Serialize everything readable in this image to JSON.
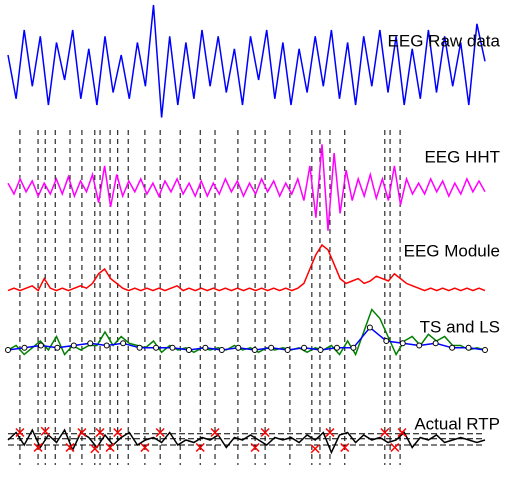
{
  "chart_data": [
    {
      "type": "line",
      "title": "EEG Raw data",
      "ylim": [
        -1,
        1
      ],
      "series": [
        {
          "color": "#0000ff",
          "values": [
            0.2,
            -0.5,
            0.6,
            -0.3,
            0.5,
            -0.6,
            0.4,
            -0.2,
            0.6,
            -0.5,
            0.3,
            -0.6,
            0.5,
            -0.4,
            0.2,
            -0.5,
            0.4,
            -0.3,
            1.0,
            -0.8,
            0.5,
            -0.6,
            0.4,
            -0.5,
            0.6,
            -0.3,
            0.5,
            -0.4,
            0.3,
            -0.6,
            0.5,
            -0.2,
            0.6,
            -0.5,
            0.4,
            -0.6,
            0.3,
            -0.4,
            0.5,
            -0.3,
            0.6,
            -0.5,
            0.4,
            -0.6,
            0.5,
            -0.3,
            0.6,
            -0.4,
            0.5,
            -0.6,
            0.3,
            -0.5,
            0.6,
            -0.4,
            0.5,
            -0.3,
            0.4,
            -0.6,
            0.7,
            0.1
          ]
        }
      ]
    },
    {
      "type": "line",
      "title": "EEG HHT",
      "ylim": [
        -1.1,
        1.1
      ],
      "series": [
        {
          "color": "#ff00ff",
          "values": [
            0.1,
            -0.15,
            0.2,
            -0.1,
            0.15,
            -0.2,
            0.1,
            -0.15,
            0.2,
            -0.15,
            0.25,
            -0.2,
            0.15,
            -0.1,
            0.3,
            -0.35,
            0.5,
            -0.45,
            0.3,
            -0.2,
            0.15,
            -0.1,
            0.2,
            -0.15,
            0.1,
            -0.2,
            0.15,
            -0.1,
            0.2,
            -0.15,
            0.1,
            -0.2,
            0.15,
            -0.2,
            0.1,
            -0.15,
            0.2,
            -0.1,
            0.15,
            -0.2,
            0.1,
            -0.15,
            0.2,
            -0.1,
            0.15,
            -0.2,
            0.1,
            -0.15,
            0.2,
            -0.3,
            0.5,
            -0.7,
            1.0,
            -1.0,
            0.8,
            -0.6,
            0.4,
            -0.3,
            0.2,
            -0.2,
            0.3,
            -0.25,
            0.2,
            -0.3,
            0.5,
            -0.4,
            0.2,
            -0.15,
            0.1,
            -0.15,
            0.2,
            -0.1,
            0.15,
            -0.2,
            0.1,
            -0.15,
            0.2,
            -0.1,
            0.15,
            -0.1
          ]
        }
      ]
    },
    {
      "type": "line",
      "title": "EEG Module",
      "ylim": [
        0,
        1
      ],
      "series": [
        {
          "color": "#ff0000",
          "values": [
            0.05,
            0.1,
            0.05,
            0.1,
            0.15,
            0.05,
            0.3,
            0.1,
            0.05,
            0.1,
            0.05,
            0.1,
            0.15,
            0.1,
            0.2,
            0.4,
            0.5,
            0.3,
            0.2,
            0.1,
            0.05,
            0.1,
            0.05,
            0.1,
            0.05,
            0.1,
            0.05,
            0.1,
            0.15,
            0.05,
            0.1,
            0.05,
            0.1,
            0.05,
            0.1,
            0.05,
            0.1,
            0.05,
            0.1,
            0.05,
            0.1,
            0.05,
            0.1,
            0.05,
            0.1,
            0.05,
            0.1,
            0.05,
            0.1,
            0.2,
            0.5,
            0.8,
            1.0,
            0.9,
            0.6,
            0.3,
            0.2,
            0.25,
            0.3,
            0.2,
            0.25,
            0.35,
            0.3,
            0.25,
            0.4,
            0.3,
            0.2,
            0.15,
            0.1,
            0.05,
            0.1,
            0.05,
            0.1,
            0.05,
            0.1,
            0.05,
            0.1,
            0.05,
            0.1,
            0.05
          ]
        }
      ]
    },
    {
      "type": "line",
      "title": "TS and LS",
      "ylim": [
        -1,
        1
      ],
      "series": [
        {
          "color": "#008000",
          "values": [
            0,
            0.1,
            -0.1,
            0.05,
            0.2,
            0,
            0.3,
            -0.1,
            0.1,
            0,
            0.1,
            0.1,
            0.4,
            0.1,
            0.3,
            0.15,
            0.1,
            0.05,
            0.2,
            -0.05,
            0.1,
            0,
            0.05,
            -0.05,
            0.05,
            0,
            0.05,
            0,
            0.1,
            0,
            0.05,
            -0.05,
            0.05,
            0,
            0.05,
            0,
            0.05,
            -0.05,
            0.05,
            0,
            0.1,
            -0.1,
            0.2,
            -0.1,
            0.4,
            0.9,
            0.7,
            0.3,
            -0.1,
            0.2,
            0.3,
            0.1,
            0.35,
            0.2,
            0.3,
            0.1,
            0.1,
            0,
            0.05,
            0
          ]
        },
        {
          "color": "#0000ff",
          "marker": "circle",
          "values": [
            0,
            0.05,
            0.1,
            0.05,
            0.1,
            0.15,
            0.1,
            0.15,
            0.05,
            0.05,
            0.05,
            0,
            0.05,
            0,
            0.05,
            0,
            0.05,
            0,
            0.05,
            0,
            0.05,
            0.05,
            0.5,
            0.2,
            0.15,
            0.1,
            0.15,
            0.05,
            0.05,
            0
          ]
        }
      ]
    },
    {
      "type": "line",
      "title": "Actual RTP",
      "ylim": [
        -1,
        1
      ],
      "xlim": [
        0,
        100
      ],
      "hlines": [
        0.25,
        0.05,
        -0.2
      ],
      "series": [
        {
          "color": "#000000",
          "values": [
            0,
            0.3,
            -0.2,
            0.4,
            -0.3,
            0.2,
            -0.1,
            0.4,
            -0.4,
            0.3,
            0.1,
            -0.3,
            0.2,
            -0.2,
            0.1,
            0.3,
            -0.2,
            0,
            0.1,
            -0.1,
            0.3,
            -0.2,
            0,
            -0.1,
            0.1,
            0,
            0.2,
            -0.3,
            0.1,
            0,
            0.2,
            0,
            -0.2,
            0.1,
            0,
            0.1,
            -0.1,
            0.2,
            0,
            0.3,
            -0.5,
            0.2,
            0.3,
            -0.1,
            0.2,
            0,
            0.1,
            -0.1,
            0,
            0.3,
            -0.3,
            0.1,
            0,
            0.2,
            -0.1,
            0,
            0.1,
            0,
            -0.1,
            0
          ]
        },
        {
          "color": "#ff0000",
          "marker": "x",
          "x": [
            2.5,
            6.3,
            7.8,
            13,
            15.5,
            18.2,
            19.3,
            21.4,
            23,
            28.7,
            31.9,
            40.3,
            43.4,
            51.8,
            53.9,
            64.4,
            67.5,
            70.6,
            79,
            81.1,
            82.6
          ],
          "values": [
            0.3,
            -0.3,
            0.35,
            -0.3,
            0.3,
            -0.35,
            0.3,
            -0.3,
            0.3,
            -0.3,
            0.3,
            -0.3,
            0.3,
            -0.3,
            0.3,
            -0.35,
            0.3,
            -0.3,
            0.3,
            -0.3,
            0.3
          ]
        }
      ]
    }
  ],
  "events": {
    "xlim": [
      0,
      100
    ],
    "x": [
      2.5,
      6.3,
      7.8,
      9.9,
      13,
      15.5,
      18.2,
      19.3,
      21.4,
      23,
      25.2,
      28.7,
      31.9,
      36.1,
      40.3,
      43.4,
      48.2,
      51.8,
      53.9,
      59.1,
      63.7,
      65.4,
      67.5,
      70.6,
      79,
      80.1,
      82.2
    ]
  }
}
